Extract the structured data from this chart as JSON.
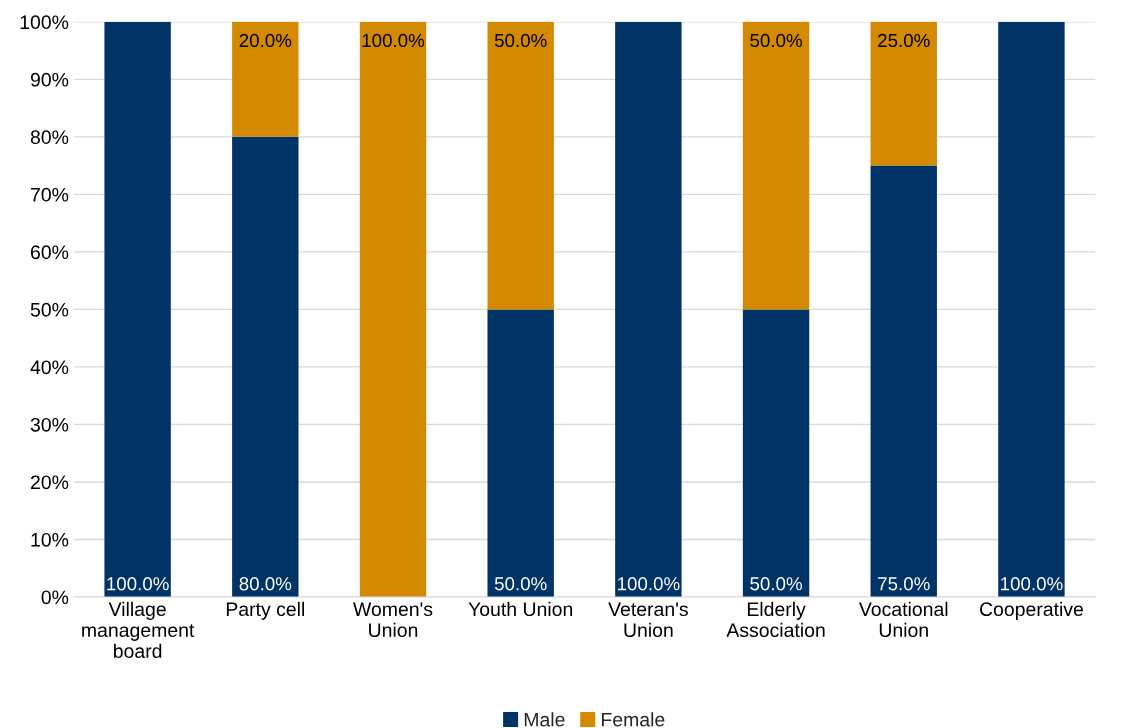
{
  "chart_data": {
    "type": "bar",
    "stacked": true,
    "categories": [
      "Village\nmanagement\nboard",
      "Party cell",
      "Women's\nUnion",
      "Youth Union",
      "Veteran's\nUnion",
      "Elderly\nAssociation",
      "Vocational\nUnion",
      "Cooperative"
    ],
    "series": [
      {
        "name": "Male",
        "color": "#003366",
        "values": [
          100,
          80,
          0,
          50,
          100,
          50,
          75,
          100
        ],
        "value_labels": [
          "100.0%",
          "80.0%",
          null,
          "50.0%",
          "100.0%",
          "50.0%",
          "75.0%",
          "100.0%"
        ]
      },
      {
        "name": "Female",
        "color": "#d48a00",
        "values": [
          0,
          20,
          100,
          50,
          0,
          50,
          25,
          0
        ],
        "value_labels": [
          null,
          "20.0%",
          "100.0%",
          "50.0%",
          null,
          "50.0%",
          "25.0%",
          null
        ]
      }
    ],
    "ylim": [
      0,
      100
    ],
    "yticks": [
      {
        "value": 0,
        "label": "0%"
      },
      {
        "value": 10,
        "label": "10%"
      },
      {
        "value": 20,
        "label": "20%"
      },
      {
        "value": 30,
        "label": "30%"
      },
      {
        "value": 40,
        "label": "40%"
      },
      {
        "value": 50,
        "label": "50%"
      },
      {
        "value": 60,
        "label": "60%"
      },
      {
        "value": 70,
        "label": "70%"
      },
      {
        "value": 80,
        "label": "80%"
      },
      {
        "value": 90,
        "label": "90%"
      },
      {
        "value": 100,
        "label": "100%"
      }
    ],
    "grid": "y",
    "legend": "bottom"
  }
}
